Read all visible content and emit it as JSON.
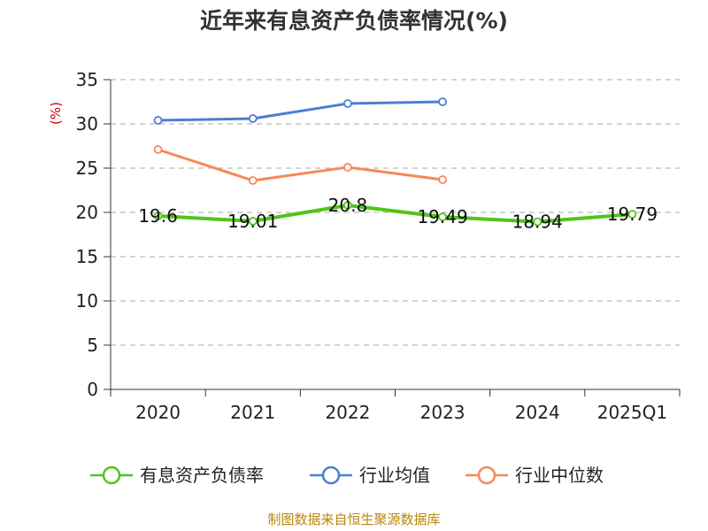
{
  "chart_data": {
    "type": "line",
    "title": "近年来有息资产负债率情况(%)",
    "ylabel": "(%)",
    "xlabel": "",
    "ylim": [
      0,
      35
    ],
    "yticks": [
      0,
      5,
      10,
      15,
      20,
      25,
      30,
      35
    ],
    "categories": [
      "2020",
      "2021",
      "2022",
      "2023",
      "2024",
      "2025Q1"
    ],
    "grid": true,
    "legend_position": "bottom",
    "series": [
      {
        "name": "有息资产负债率",
        "color": "#52c41a",
        "values": [
          19.6,
          19.01,
          20.8,
          19.49,
          18.94,
          19.79
        ],
        "labels": [
          "19.6",
          "19.01",
          "20.8",
          "19.49",
          "18.94",
          "19.79"
        ],
        "show_labels": true
      },
      {
        "name": "行业均值",
        "color": "#4a7fd4",
        "values": [
          30.4,
          30.6,
          32.3,
          32.5,
          null,
          null
        ],
        "show_labels": false
      },
      {
        "name": "行业中位数",
        "color": "#f5895a",
        "values": [
          27.1,
          23.6,
          25.1,
          23.7,
          null,
          null
        ],
        "show_labels": false
      }
    ]
  },
  "source": "制图数据来自恒生聚源数据库"
}
